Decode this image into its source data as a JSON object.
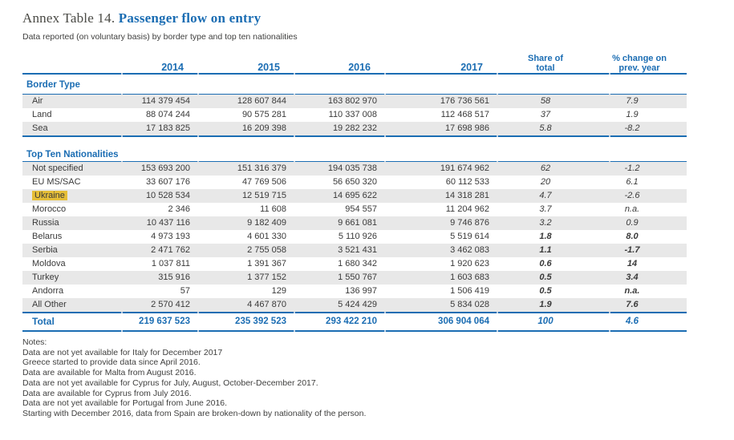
{
  "title": {
    "prefix": "Annex Table 14.",
    "main": "Passenger flow on entry"
  },
  "subtitle": "Data reported (on voluntary basis) by border type and top ten nationalities",
  "header": {
    "years": [
      "2014",
      "2015",
      "2016",
      "2017"
    ],
    "share": "Share of total",
    "change": "% change on prev. year"
  },
  "sections": [
    {
      "name": "Border Type",
      "rows": [
        {
          "label": "Air",
          "values": [
            "114 379 454",
            "128 607 844",
            "163 802 970",
            "176 736 561"
          ],
          "share": "58",
          "change": "7.9"
        },
        {
          "label": "Land",
          "values": [
            "88 074 244",
            "90 575 281",
            "110 337 008",
            "112 468 517"
          ],
          "share": "37",
          "change": "1.9"
        },
        {
          "label": "Sea",
          "values": [
            "17 183 825",
            "16 209 398",
            "19 282 232",
            "17 698 986"
          ],
          "share": "5.8",
          "change": "-8.2"
        }
      ]
    },
    {
      "name": "Top Ten Nationalities",
      "rows": [
        {
          "label": "Not specified",
          "values": [
            "153 693 200",
            "151 316 379",
            "194 035 738",
            "191 674 962"
          ],
          "share": "62",
          "change": "-1.2"
        },
        {
          "label": "EU MS/SAC",
          "values": [
            "33 607 176",
            "47 769 506",
            "56 650 320",
            "60 112 533"
          ],
          "share": "20",
          "change": "6.1"
        },
        {
          "label": "Ukraine",
          "highlight": true,
          "values": [
            "10 528 534",
            "12 519 715",
            "14 695 622",
            "14 318 281"
          ],
          "share": "4.7",
          "change": "-2.6"
        },
        {
          "label": "Morocco",
          "values": [
            "2 346",
            "11 608",
            "954 557",
            "11 204 962"
          ],
          "share": "3.7",
          "change": "n.a."
        },
        {
          "label": "Russia",
          "values": [
            "10 437 116",
            "9 182 409",
            "9 661 081",
            "9 746 876"
          ],
          "share": "3.2",
          "change": "0.9"
        },
        {
          "label": "Belarus",
          "bold": true,
          "values": [
            "4 973 193",
            "4 601 330",
            "5 110 926",
            "5 519 614"
          ],
          "share": "1.8",
          "change": "8.0"
        },
        {
          "label": "Serbia",
          "bold": true,
          "values": [
            "2 471 762",
            "2 755 058",
            "3 521 431",
            "3 462 083"
          ],
          "share": "1.1",
          "change": "-1.7"
        },
        {
          "label": "Moldova",
          "bold": true,
          "values": [
            "1 037 811",
            "1 391 367",
            "1 680 342",
            "1 920 623"
          ],
          "share": "0.6",
          "change": "14"
        },
        {
          "label": "Turkey",
          "bold": true,
          "values": [
            "315 916",
            "1 377 152",
            "1 550 767",
            "1 603 683"
          ],
          "share": "0.5",
          "change": "3.4"
        },
        {
          "label": "Andorra",
          "bold": true,
          "values": [
            "57",
            "129",
            "136 997",
            "1 506 419"
          ],
          "share": "0.5",
          "change": "n.a."
        },
        {
          "label": "All Other",
          "bold": true,
          "values": [
            "2 570 412",
            "4 467 870",
            "5 424 429",
            "5 834 028"
          ],
          "share": "1.9",
          "change": "7.6"
        }
      ]
    }
  ],
  "total": {
    "label": "Total",
    "values": [
      "219 637 523",
      "235 392 523",
      "293 422 210",
      "306 904 064"
    ],
    "share": "100",
    "change": "4.6"
  },
  "notes_label": "Notes:",
  "notes": [
    "Data are not yet available for Italy for December 2017",
    "Greece started to provide data since April 2016.",
    "Data are available for Malta from August 2016.",
    "Data are not yet available for Cyprus for July, August, October-December 2017.",
    "Data are available for Cyprus from July 2016.",
    "Data are not yet available for Portugal from June 2016.",
    "Starting with December 2016, data from Spain are broken-down by nationality of the person."
  ],
  "colors": {
    "accent": "#1b6db3",
    "stripe": "#e8e8e8",
    "highlight": "#e5be38"
  }
}
